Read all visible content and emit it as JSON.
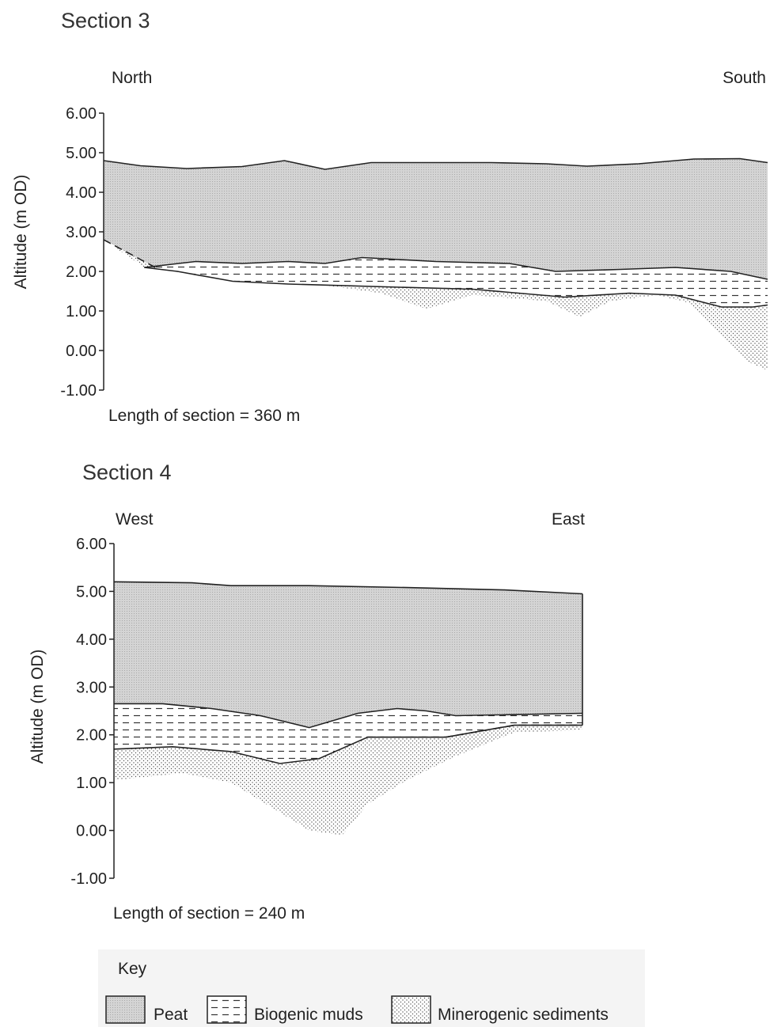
{
  "key": {
    "title": "Key",
    "items": [
      {
        "label": "Peat",
        "pattern": "peat"
      },
      {
        "label": "Biogenic muds",
        "pattern": "muds"
      },
      {
        "label": "Minerogenic sediments",
        "pattern": "minerogenic"
      }
    ]
  },
  "colors": {
    "peat_fill": "#d4d4d4",
    "line": "#222222",
    "key_background": "#f4f4f4"
  },
  "chart_data": [
    {
      "type": "area",
      "title": "Section 3",
      "orientation": {
        "left": "North",
        "right": "South"
      },
      "ylabel": "Altitude (m OD)",
      "ylim": [
        -1.0,
        6.0
      ],
      "yticks": [
        "6.00",
        "5.00",
        "4.00",
        "3.00",
        "2.00",
        "1.00",
        "0.00",
        "-1.00"
      ],
      "length_note": "Length of section = 360 m",
      "xlim": [
        0,
        360
      ],
      "layers": {
        "surface": [
          [
            0,
            4.8
          ],
          [
            20,
            4.67
          ],
          [
            45,
            4.6
          ],
          [
            75,
            4.65
          ],
          [
            98,
            4.8
          ],
          [
            120,
            4.58
          ],
          [
            145,
            4.75
          ],
          [
            175,
            4.75
          ],
          [
            210,
            4.75
          ],
          [
            240,
            4.72
          ],
          [
            262,
            4.66
          ],
          [
            290,
            4.72
          ],
          [
            320,
            4.84
          ],
          [
            345,
            4.85
          ],
          [
            360,
            4.75
          ]
        ],
        "peat_base": [
          [
            22,
            2.1
          ],
          [
            50,
            2.25
          ],
          [
            75,
            2.2
          ],
          [
            100,
            2.25
          ],
          [
            120,
            2.2
          ],
          [
            140,
            2.35
          ],
          [
            180,
            2.25
          ],
          [
            220,
            2.2
          ],
          [
            245,
            2.0
          ],
          [
            280,
            2.05
          ],
          [
            310,
            2.1
          ],
          [
            340,
            2.0
          ],
          [
            360,
            1.8
          ]
        ],
        "muds_base": [
          [
            22,
            2.1
          ],
          [
            40,
            2.0
          ],
          [
            70,
            1.75
          ],
          [
            100,
            1.68
          ],
          [
            160,
            1.6
          ],
          [
            200,
            1.55
          ],
          [
            250,
            1.35
          ],
          [
            285,
            1.45
          ],
          [
            310,
            1.4
          ],
          [
            335,
            1.1
          ],
          [
            352,
            1.1
          ],
          [
            360,
            1.15
          ]
        ],
        "mineral_base": [
          [
            0,
            2.8
          ],
          [
            30,
            2.05
          ],
          [
            60,
            1.85
          ],
          [
            90,
            1.7
          ],
          [
            120,
            1.65
          ],
          [
            150,
            1.45
          ],
          [
            175,
            1.05
          ],
          [
            200,
            1.4
          ],
          [
            240,
            1.25
          ],
          [
            258,
            0.85
          ],
          [
            275,
            1.25
          ],
          [
            300,
            1.4
          ],
          [
            318,
            1.2
          ],
          [
            335,
            0.4
          ],
          [
            350,
            -0.3
          ],
          [
            360,
            -0.5
          ]
        ]
      }
    },
    {
      "type": "area",
      "title": "Section 4",
      "orientation": {
        "left": "West",
        "right": "East"
      },
      "ylabel": "Altitude (m OD)",
      "ylim": [
        -1.0,
        6.0
      ],
      "yticks": [
        "6.00",
        "5.00",
        "4.00",
        "3.00",
        "2.00",
        "1.00",
        "0.00",
        "-1.00"
      ],
      "length_note": "Length of section = 240 m",
      "xlim": [
        0,
        240
      ],
      "layers": {
        "surface": [
          [
            0,
            5.2
          ],
          [
            40,
            5.18
          ],
          [
            60,
            5.12
          ],
          [
            100,
            5.12
          ],
          [
            150,
            5.08
          ],
          [
            200,
            5.03
          ],
          [
            240,
            4.95
          ]
        ],
        "peat_base": [
          [
            0,
            2.65
          ],
          [
            25,
            2.65
          ],
          [
            50,
            2.55
          ],
          [
            75,
            2.4
          ],
          [
            100,
            2.15
          ],
          [
            125,
            2.45
          ],
          [
            145,
            2.55
          ],
          [
            160,
            2.5
          ],
          [
            175,
            2.4
          ],
          [
            240,
            2.45
          ]
        ],
        "muds_base": [
          [
            0,
            1.7
          ],
          [
            30,
            1.75
          ],
          [
            60,
            1.65
          ],
          [
            85,
            1.4
          ],
          [
            105,
            1.5
          ],
          [
            130,
            1.95
          ],
          [
            170,
            1.95
          ],
          [
            205,
            2.2
          ],
          [
            240,
            2.2
          ]
        ],
        "mineral_base": [
          [
            0,
            1.05
          ],
          [
            35,
            1.2
          ],
          [
            60,
            1.0
          ],
          [
            80,
            0.5
          ],
          [
            100,
            0.0
          ],
          [
            117,
            -0.1
          ],
          [
            130,
            0.55
          ],
          [
            150,
            1.05
          ],
          [
            175,
            1.55
          ],
          [
            205,
            2.05
          ],
          [
            240,
            2.1
          ]
        ]
      }
    }
  ]
}
